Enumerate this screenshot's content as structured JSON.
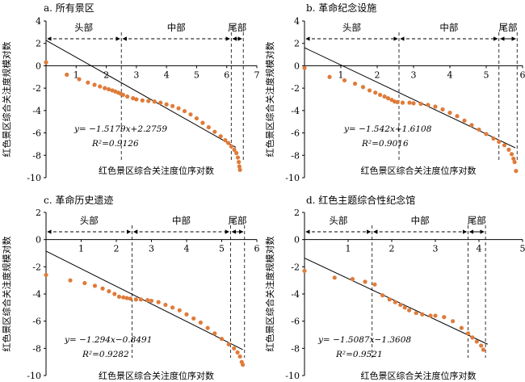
{
  "colors": {
    "points": "#e07b39",
    "axes": "#000000",
    "fit_line": "#000000"
  },
  "chart_data": [
    {
      "type": "scatter",
      "title": "a. 所有景区",
      "ylabel": "红色景区综合关注度规模对数",
      "xlabel": "红色景区综合关注度位序对数",
      "xlim": [
        0,
        7
      ],
      "ylim": [
        -10,
        4
      ],
      "xticks": [
        1,
        2,
        3,
        4,
        5,
        6,
        7
      ],
      "yticks": [
        4,
        2,
        0,
        -2,
        -4,
        -6,
        -8,
        -10
      ],
      "segments": {
        "labels": [
          "头部",
          "中部",
          "尾部"
        ],
        "bounds": [
          0,
          2.5,
          6.15,
          6.55
        ]
      },
      "regression": {
        "slope": -1.5179,
        "intercept": 2.2759,
        "r2": 0.9126,
        "x_range": [
          0,
          6.3
        ],
        "equation": "y= −1.5179x+2.2759",
        "r2_label": "R²=0.9126"
      },
      "points": [
        [
          0,
          0.3
        ],
        [
          0.69,
          -0.8
        ],
        [
          1.1,
          -1.2
        ],
        [
          1.39,
          -1.5
        ],
        [
          1.61,
          -1.7
        ],
        [
          1.79,
          -1.85
        ],
        [
          1.95,
          -2.0
        ],
        [
          2.08,
          -2.1
        ],
        [
          2.2,
          -2.2
        ],
        [
          2.3,
          -2.3
        ],
        [
          2.4,
          -2.4
        ],
        [
          2.48,
          -2.5
        ],
        [
          2.56,
          -2.6
        ],
        [
          2.7,
          -2.75
        ],
        [
          2.89,
          -2.9
        ],
        [
          3.0,
          -3.0
        ],
        [
          3.2,
          -3.1
        ],
        [
          3.4,
          -3.15
        ],
        [
          3.6,
          -3.2
        ],
        [
          3.8,
          -3.3
        ],
        [
          4.0,
          -3.45
        ],
        [
          4.2,
          -3.6
        ],
        [
          4.4,
          -3.8
        ],
        [
          4.6,
          -4.05
        ],
        [
          4.8,
          -4.35
        ],
        [
          5.0,
          -4.7
        ],
        [
          5.2,
          -5.1
        ],
        [
          5.4,
          -5.5
        ],
        [
          5.6,
          -5.9
        ],
        [
          5.8,
          -6.3
        ],
        [
          5.95,
          -6.65
        ],
        [
          6.05,
          -6.9
        ],
        [
          6.15,
          -7.2
        ],
        [
          6.25,
          -7.5
        ],
        [
          6.32,
          -7.8
        ],
        [
          6.37,
          -8.2
        ],
        [
          6.4,
          -8.6
        ],
        [
          6.42,
          -9.0
        ],
        [
          6.44,
          -9.3
        ]
      ]
    },
    {
      "type": "scatter",
      "title": "b. 革命纪念设施",
      "ylabel": "红色景区综合关注度规模对数",
      "xlabel": "红色景区综合关注度位序对数",
      "xlim": [
        0,
        6
      ],
      "ylim": [
        -10,
        4
      ],
      "xticks": [
        1,
        2,
        3,
        4,
        5,
        6
      ],
      "yticks": [
        4,
        2,
        0,
        -2,
        -4,
        -6,
        -8,
        -10
      ],
      "segments": {
        "labels": [
          "头部",
          "中部",
          "尾部"
        ],
        "bounds": [
          0,
          2.6,
          5.35,
          5.85
        ]
      },
      "regression": {
        "slope": -1.542,
        "intercept": 1.6108,
        "r2": 0.9016,
        "x_range": [
          0,
          5.8
        ],
        "equation": "y= −1.542x+1.6108",
        "r2_label": "R²=0.9016"
      },
      "points": [
        [
          0,
          -0.2
        ],
        [
          0.69,
          -1.0
        ],
        [
          1.1,
          -1.3
        ],
        [
          1.39,
          -1.6
        ],
        [
          1.61,
          -1.9
        ],
        [
          1.79,
          -2.2
        ],
        [
          1.95,
          -2.4
        ],
        [
          2.08,
          -2.6
        ],
        [
          2.2,
          -2.75
        ],
        [
          2.3,
          -2.9
        ],
        [
          2.4,
          -3.05
        ],
        [
          2.48,
          -3.2
        ],
        [
          2.56,
          -3.25
        ],
        [
          2.7,
          -3.3
        ],
        [
          2.89,
          -3.3
        ],
        [
          3.0,
          -3.35
        ],
        [
          3.2,
          -3.4
        ],
        [
          3.4,
          -3.5
        ],
        [
          3.6,
          -3.65
        ],
        [
          3.8,
          -3.9
        ],
        [
          4.0,
          -4.2
        ],
        [
          4.2,
          -4.5
        ],
        [
          4.4,
          -4.9
        ],
        [
          4.6,
          -5.3
        ],
        [
          4.8,
          -5.7
        ],
        [
          5.0,
          -6.1
        ],
        [
          5.2,
          -6.5
        ],
        [
          5.35,
          -6.8
        ],
        [
          5.5,
          -7.1
        ],
        [
          5.62,
          -7.5
        ],
        [
          5.7,
          -7.9
        ],
        [
          5.75,
          -8.3
        ],
        [
          5.78,
          -8.6
        ],
        [
          5.82,
          -9.4
        ]
      ]
    },
    {
      "type": "scatter",
      "title": "c. 革命历史遗迹",
      "ylabel": "红色景区综合关注度规模对数",
      "xlabel": "红色景区综合关注度位序对数",
      "xlim": [
        0,
        6
      ],
      "ylim": [
        -10,
        2
      ],
      "xticks": [
        1,
        2,
        3,
        4,
        5,
        6
      ],
      "yticks": [
        2,
        0,
        -2,
        -4,
        -6,
        -8,
        -10
      ],
      "segments": {
        "labels": [
          "头部",
          "中部",
          "尾部"
        ],
        "bounds": [
          0,
          2.45,
          5.25,
          5.65
        ]
      },
      "regression": {
        "slope": -1.294,
        "intercept": -0.8491,
        "r2": 0.9282,
        "x_range": [
          0,
          5.6
        ],
        "equation": "y= −1.294x−0.8491",
        "r2_label": "R²=0.9282"
      },
      "points": [
        [
          0,
          -2.6
        ],
        [
          0.69,
          -3.0
        ],
        [
          1.1,
          -3.2
        ],
        [
          1.39,
          -3.4
        ],
        [
          1.61,
          -3.6
        ],
        [
          1.79,
          -3.8
        ],
        [
          1.95,
          -4.0
        ],
        [
          2.08,
          -4.2
        ],
        [
          2.2,
          -4.25
        ],
        [
          2.3,
          -4.3
        ],
        [
          2.4,
          -4.35
        ],
        [
          2.56,
          -4.4
        ],
        [
          2.7,
          -4.4
        ],
        [
          2.89,
          -4.45
        ],
        [
          3.0,
          -4.5
        ],
        [
          3.2,
          -4.6
        ],
        [
          3.4,
          -4.8
        ],
        [
          3.6,
          -5.0
        ],
        [
          3.8,
          -5.2
        ],
        [
          4.0,
          -5.5
        ],
        [
          4.2,
          -5.8
        ],
        [
          4.4,
          -6.1
        ],
        [
          4.6,
          -6.5
        ],
        [
          4.8,
          -6.9
        ],
        [
          5.0,
          -7.3
        ],
        [
          5.2,
          -7.7
        ],
        [
          5.35,
          -8.0
        ],
        [
          5.45,
          -8.3
        ],
        [
          5.52,
          -8.6
        ],
        [
          5.57,
          -9.0
        ],
        [
          5.6,
          -9.2
        ]
      ]
    },
    {
      "type": "scatter",
      "title": "d. 红色主题综合性纪念馆",
      "ylabel": "红色景区综合关注度规模对数",
      "xlabel": "红色景区综合关注度位序对数",
      "xlim": [
        0,
        5
      ],
      "ylim": [
        -10,
        2
      ],
      "xticks": [
        1,
        2,
        3,
        4,
        5
      ],
      "yticks": [
        2,
        0,
        -2,
        -4,
        -6,
        -8,
        -10
      ],
      "segments": {
        "labels": [
          "头部",
          "中部",
          "尾部"
        ],
        "bounds": [
          0,
          1.55,
          3.75,
          4.15
        ]
      },
      "regression": {
        "slope": -1.5087,
        "intercept": -1.3608,
        "r2": 0.9521,
        "x_range": [
          0,
          4.2
        ],
        "equation": "y= −1.5087x−1.3608",
        "r2_label": "R²=0.9521"
      },
      "points": [
        [
          0,
          -2.3
        ],
        [
          0.69,
          -2.8
        ],
        [
          1.1,
          -2.9
        ],
        [
          1.39,
          -3.1
        ],
        [
          1.61,
          -3.3
        ],
        [
          1.79,
          -4.1
        ],
        [
          1.95,
          -4.4
        ],
        [
          2.08,
          -4.6
        ],
        [
          2.2,
          -4.8
        ],
        [
          2.3,
          -5.0
        ],
        [
          2.4,
          -5.2
        ],
        [
          2.56,
          -5.4
        ],
        [
          2.7,
          -5.5
        ],
        [
          2.89,
          -5.6
        ],
        [
          3.0,
          -5.6
        ],
        [
          3.2,
          -5.7
        ],
        [
          3.4,
          -6.0
        ],
        [
          3.6,
          -6.5
        ],
        [
          3.75,
          -6.9
        ],
        [
          3.85,
          -7.2
        ],
        [
          3.95,
          -7.5
        ],
        [
          4.05,
          -7.8
        ],
        [
          4.1,
          -8.1
        ]
      ]
    }
  ]
}
